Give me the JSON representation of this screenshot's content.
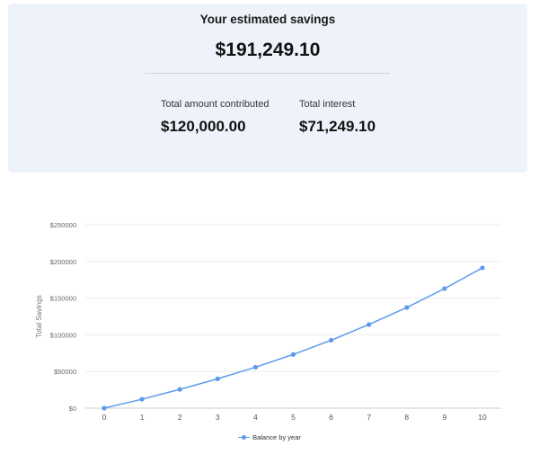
{
  "summary": {
    "headline_label": "Your estimated savings",
    "headline_value": "$191,249.10",
    "contributed_label": "Total amount contributed",
    "contributed_value": "$120,000.00",
    "interest_label": "Total interest",
    "interest_value": "$71,249.10",
    "background_color": "#eef3fb"
  },
  "chart_data": {
    "type": "line",
    "x": [
      0,
      1,
      2,
      3,
      4,
      5,
      6,
      7,
      8,
      9,
      10
    ],
    "series": [
      {
        "name": "Balance by year",
        "color": "#5b9bea",
        "values": [
          0,
          12200,
          25600,
          40000,
          55800,
          73200,
          92600,
          114000,
          137200,
          163000,
          191249.1
        ]
      }
    ],
    "ylabel": "Total Savings",
    "xlabel": "",
    "ylim": [
      0,
      250000
    ],
    "y_ticks": [
      0,
      50000,
      100000,
      150000,
      200000,
      250000
    ],
    "y_tick_labels": [
      "$0",
      "$50000",
      "$100000",
      "$150000",
      "$200000",
      "$250000"
    ],
    "x_tick_labels": [
      "0",
      "1",
      "2",
      "3",
      "4",
      "5",
      "6",
      "7",
      "8",
      "9",
      "10"
    ],
    "grid": true,
    "legend_position": "bottom"
  }
}
